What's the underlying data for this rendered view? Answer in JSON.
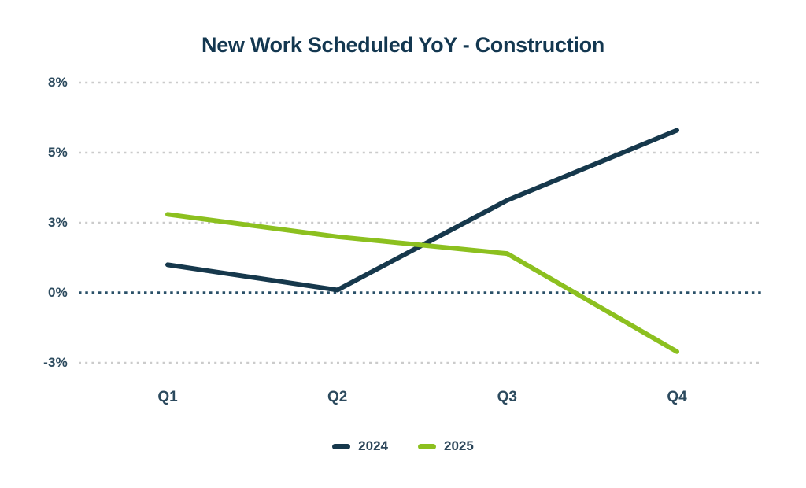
{
  "chart_data": {
    "type": "line",
    "title": "New Work Scheduled YoY - Construction",
    "categories": [
      "Q1",
      "Q2",
      "Q3",
      "Q4"
    ],
    "series": [
      {
        "name": "2024",
        "color": "#16384C",
        "values": [
          1.0,
          0.1,
          3.3,
          5.8
        ]
      },
      {
        "name": "2025",
        "color": "#8CC01F",
        "values": [
          2.8,
          2.0,
          1.4,
          -2.1
        ]
      }
    ],
    "yticks": [
      {
        "label": "8%",
        "value": 7.5
      },
      {
        "label": "5%",
        "value": 5
      },
      {
        "label": "3%",
        "value": 2.5
      },
      {
        "label": "0%",
        "value": 0
      },
      {
        "label": "-3%",
        "value": -2.5
      }
    ],
    "ylim": [
      -2.5,
      7.5
    ],
    "xlabel": "",
    "ylabel": "",
    "grid": "dotted-horizontal",
    "legend_position": "bottom-center",
    "colors": {
      "title_text": "#133750",
      "tick_text": "#2C4A5E",
      "grid_line": "#CBCBCB",
      "zero_line": "#2A5068",
      "background": "#FFFFFF"
    }
  }
}
